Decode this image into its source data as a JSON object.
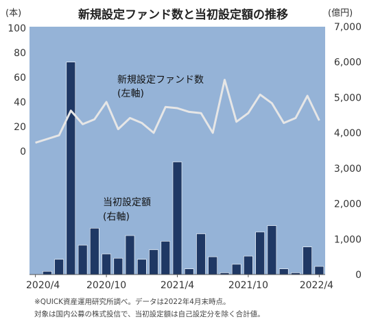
{
  "chart_data": {
    "type": "bar+line",
    "title": "新規設定ファンド数と当初設定額の推移",
    "left_axis_unit": "(本)",
    "right_axis_unit": "(億円)",
    "left_ticks": [
      "0",
      "20",
      "40",
      "60",
      "80",
      "100"
    ],
    "right_ticks": [
      "0",
      "1,000",
      "2,000",
      "3,000",
      "4,000",
      "5,000",
      "6,000",
      "7,000"
    ],
    "x_tick_labels": [
      "2020/4",
      "2020/10",
      "2021/4",
      "2021/10",
      "2022/4"
    ],
    "x": [
      "2020/4",
      "2020/5",
      "2020/6",
      "2020/7",
      "2020/8",
      "2020/9",
      "2020/10",
      "2020/11",
      "2020/12",
      "2021/1",
      "2021/2",
      "2021/3",
      "2021/4",
      "2021/5",
      "2021/6",
      "2021/7",
      "2021/8",
      "2021/9",
      "2021/10",
      "2021/11",
      "2021/12",
      "2022/1",
      "2022/2",
      "2022/3",
      "2022/4"
    ],
    "series": [
      {
        "label_line1": "当初設定額",
        "label_line2": "(右軸)",
        "axis": "right",
        "kind": "bar",
        "color": "#1f3864",
        "values": [
          0,
          90,
          430,
          6000,
          830,
          1310,
          580,
          460,
          1100,
          430,
          700,
          940,
          3180,
          160,
          1150,
          500,
          50,
          290,
          520,
          1200,
          1380,
          160,
          50,
          780,
          230
        ]
      },
      {
        "label_line1": "新規設定ファンド数",
        "label_line2": "(左軸)",
        "axis": "left",
        "kind": "line",
        "color": "#e6e6e6",
        "values": [
          7,
          10,
          13,
          33,
          22,
          26,
          40,
          18,
          27,
          23,
          15,
          36,
          35,
          32,
          31,
          15,
          58,
          24,
          31,
          46,
          39,
          23,
          27,
          45,
          25
        ]
      }
    ],
    "left_range": [
      0,
      100
    ],
    "right_range": [
      0,
      7000
    ],
    "background": "#95b3d7",
    "note_line1": "※QUICK資産運用研究所調べ。データは2022年4月末時点。",
    "note_line2": "対象は国内公募の株式投信で、当初設定額は自己設定分を除く合計値。"
  }
}
